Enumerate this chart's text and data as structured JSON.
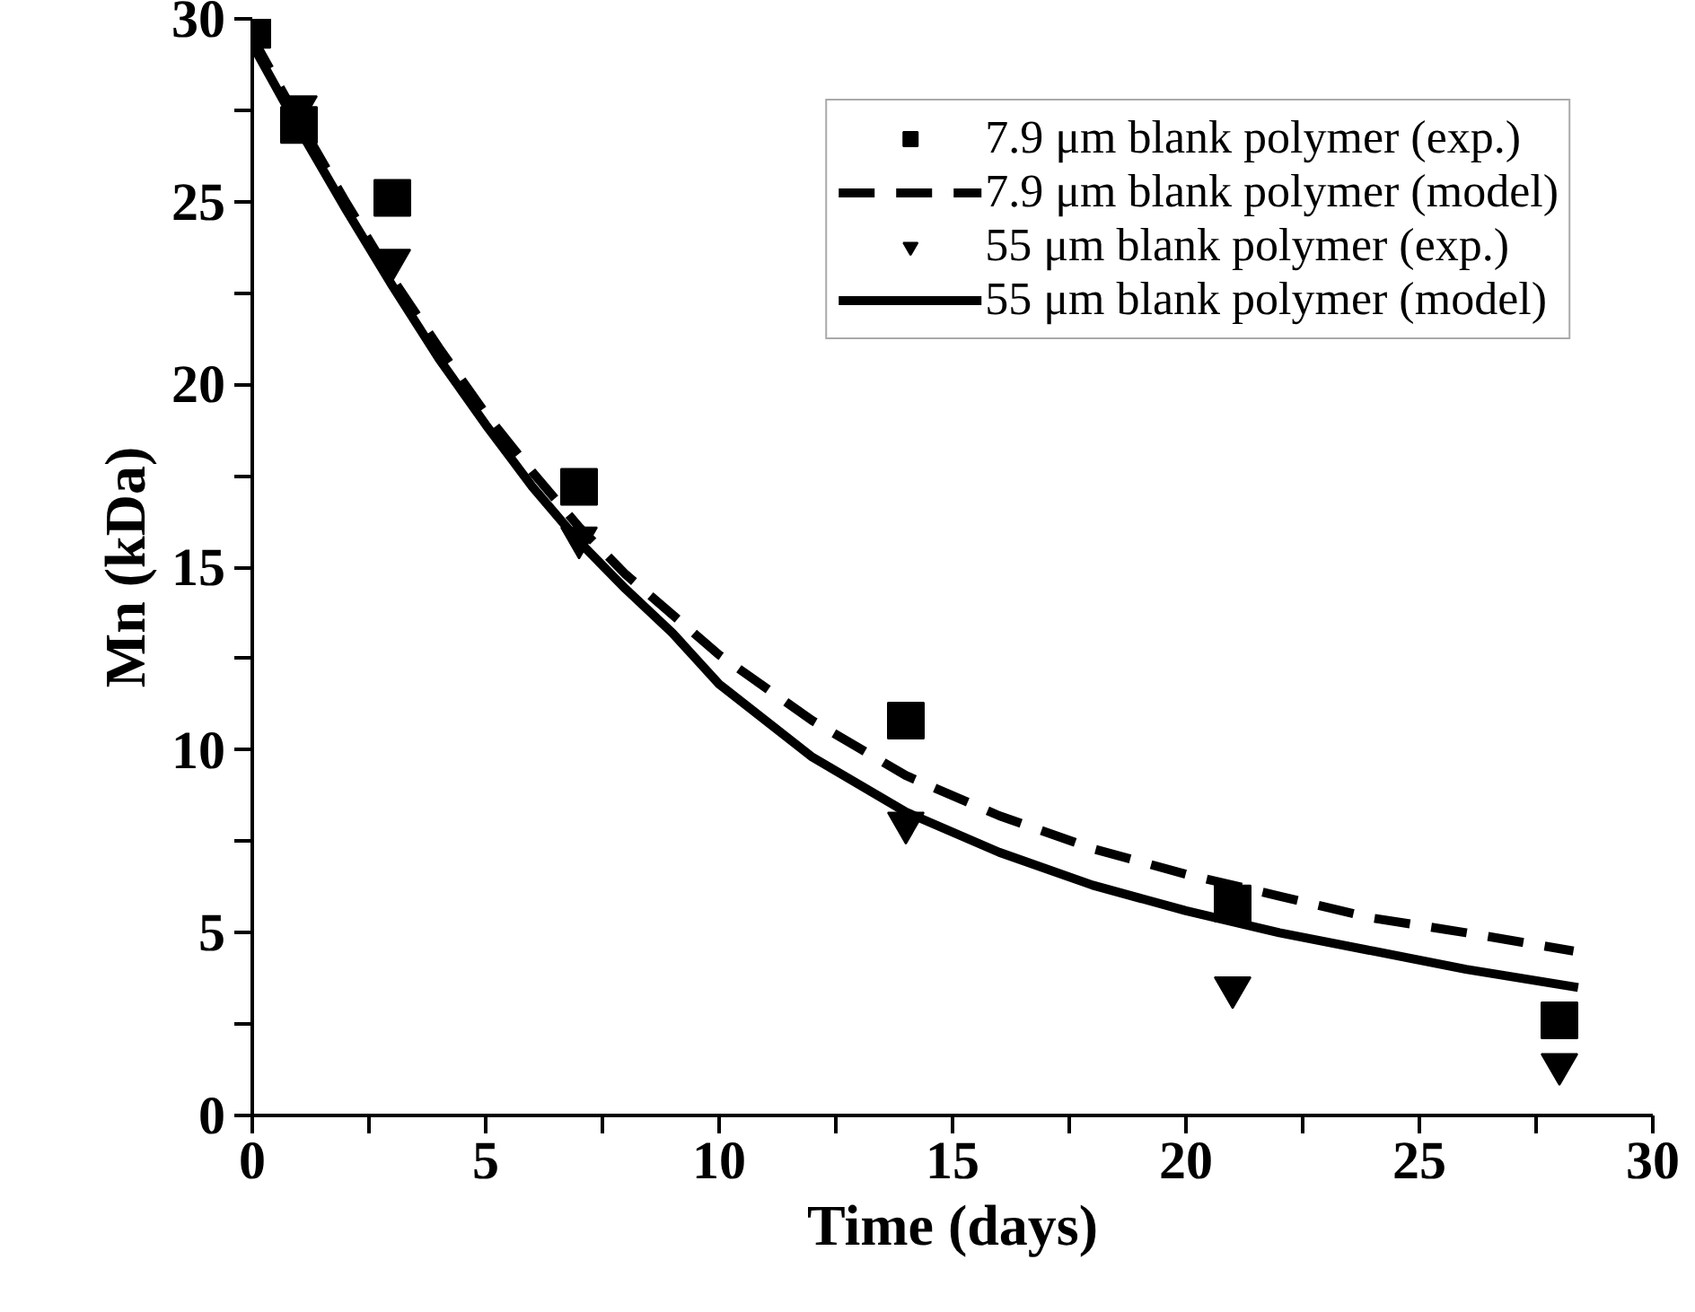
{
  "chart_data": {
    "type": "line",
    "xlabel": "Time (days)",
    "ylabel": "Mn (kDa)",
    "xlim": [
      0,
      30
    ],
    "ylim": [
      0,
      30
    ],
    "xticks": [
      0,
      {
        "value": 2.5,
        "label": null
      },
      5,
      {
        "value": 7.5,
        "label": null
      },
      10,
      {
        "value": 12.5,
        "label": null
      },
      15,
      {
        "value": 17.5,
        "label": null
      },
      20,
      {
        "value": 22.5,
        "label": null
      },
      25,
      {
        "value": 27.5,
        "label": null
      },
      30
    ],
    "yticks": [
      0,
      {
        "value": 2.5,
        "label": null
      },
      5,
      {
        "value": 7.5,
        "label": null
      },
      10,
      {
        "value": 12.5,
        "label": null
      },
      15,
      {
        "value": 17.5,
        "label": null
      },
      20,
      {
        "value": 22.5,
        "label": null
      },
      25,
      {
        "value": 27.5,
        "label": null
      },
      30
    ],
    "grid": false,
    "legend": "top right",
    "series": [
      {
        "name": "7.9 μm blank polymer (exp.)",
        "type": "scatter",
        "marker": "square",
        "color": "#000000",
        "x": [
          0,
          1,
          3,
          7,
          14,
          21,
          28
        ],
        "values": [
          29.7,
          27.1,
          25.1,
          17.2,
          10.8,
          5.8,
          2.6
        ]
      },
      {
        "name": "7.9 μm blank polymer (model)",
        "type": "line",
        "line_style": "dashed",
        "color": "#000000",
        "x": [
          0,
          1,
          2,
          3,
          4,
          5,
          6,
          7,
          8,
          10,
          12,
          14,
          16,
          18,
          20,
          22,
          24,
          26,
          28.3
        ],
        "values": [
          29.5,
          27.2,
          25.0,
          22.9,
          21.0,
          19.2,
          17.6,
          16.1,
          14.8,
          12.6,
          10.8,
          9.3,
          8.2,
          7.3,
          6.6,
          6.0,
          5.4,
          5.0,
          4.5
        ]
      },
      {
        "name": "55 μm blank polymer (exp.)",
        "type": "scatter",
        "marker": "triangle",
        "color": "#000000",
        "x": [
          1,
          3,
          7,
          14,
          21,
          28
        ],
        "values": [
          27.6,
          23.4,
          15.8,
          8.0,
          3.5,
          1.4
        ]
      },
      {
        "name": "55 μm blank polymer (model)",
        "type": "line",
        "line_style": "solid",
        "color": "#000000",
        "x": [
          0,
          1,
          2,
          3,
          4,
          5,
          6,
          7,
          8,
          9,
          10,
          12,
          14,
          16,
          18,
          20,
          21,
          22,
          24,
          26,
          28.4
        ],
        "values": [
          29.3,
          27.0,
          24.8,
          22.7,
          20.7,
          18.9,
          17.2,
          15.7,
          14.4,
          13.2,
          11.8,
          9.8,
          8.3,
          7.2,
          6.3,
          5.6,
          5.3,
          5.0,
          4.5,
          4.0,
          3.5
        ]
      }
    ]
  }
}
